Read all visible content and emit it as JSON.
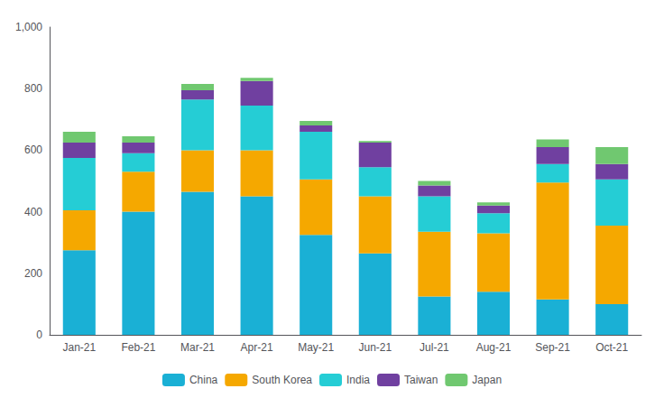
{
  "chart_data": {
    "type": "bar",
    "stacked": true,
    "categories": [
      "Jan-21",
      "Feb-21",
      "Mar-21",
      "Apr-21",
      "May-21",
      "Jun-21",
      "Jul-21",
      "Aug-21",
      "Sep-21",
      "Oct-21"
    ],
    "series": [
      {
        "name": "China",
        "color": "#1ab0d5",
        "values": [
          275,
          400,
          465,
          450,
          325,
          265,
          125,
          140,
          115,
          100
        ]
      },
      {
        "name": "South Korea",
        "color": "#f5a800",
        "values": [
          130,
          130,
          135,
          150,
          180,
          185,
          210,
          190,
          380,
          255
        ]
      },
      {
        "name": "India",
        "color": "#25cdd5",
        "values": [
          170,
          60,
          165,
          145,
          155,
          95,
          115,
          65,
          60,
          150
        ]
      },
      {
        "name": "Taiwan",
        "color": "#7040a0",
        "values": [
          50,
          35,
          30,
          80,
          20,
          80,
          35,
          25,
          55,
          50
        ]
      },
      {
        "name": "Japan",
        "color": "#70c870",
        "values": [
          35,
          20,
          20,
          10,
          15,
          5,
          15,
          10,
          25,
          55
        ]
      }
    ],
    "ylim": [
      0,
      1000
    ],
    "yticks": [
      0,
      200,
      400,
      600,
      800,
      1000
    ],
    "grid": false,
    "legend": "bottom"
  }
}
